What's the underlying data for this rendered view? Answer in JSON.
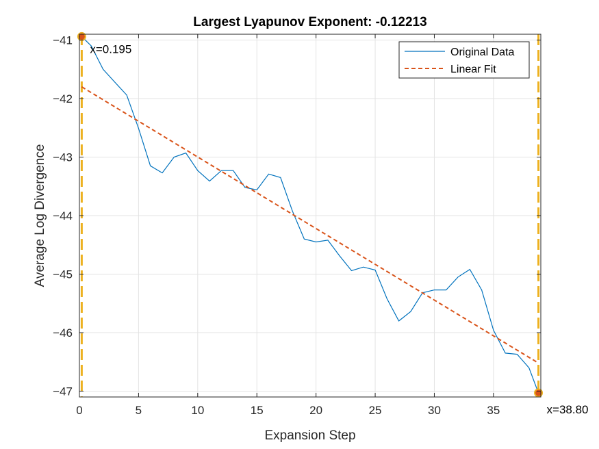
{
  "chart_data": {
    "type": "line",
    "title": "Largest Lyapunov Exponent: -0.12213",
    "xlabel": "Expansion Step",
    "ylabel": "Average Log Divergence",
    "xlim": [
      0,
      39
    ],
    "ylim": [
      -47.1,
      -40.9
    ],
    "xticks": [
      0,
      5,
      10,
      15,
      20,
      25,
      30,
      35
    ],
    "yticks": [
      -41,
      -42,
      -43,
      -44,
      -45,
      -46,
      -47
    ],
    "grid": true,
    "legend_position": "top-right",
    "series": [
      {
        "name": "Original Data",
        "color": "#0072BD",
        "style": "solid",
        "x": [
          0.195,
          1,
          2,
          3,
          4,
          5,
          6,
          7,
          8,
          9,
          10,
          11,
          12,
          13,
          14,
          15,
          16,
          17,
          18,
          19,
          20,
          21,
          22,
          23,
          24,
          25,
          26,
          27,
          28,
          29,
          30,
          31,
          32,
          33,
          34,
          35,
          36,
          37,
          38,
          38.8
        ],
        "y": [
          -40.94,
          -41.1,
          -41.5,
          -41.72,
          -41.94,
          -42.51,
          -43.15,
          -43.27,
          -43.0,
          -42.93,
          -43.23,
          -43.41,
          -43.23,
          -43.23,
          -43.52,
          -43.56,
          -43.29,
          -43.35,
          -43.92,
          -44.4,
          -44.45,
          -44.42,
          -44.69,
          -44.94,
          -44.88,
          -44.93,
          -45.42,
          -45.8,
          -45.64,
          -45.32,
          -45.27,
          -45.27,
          -45.05,
          -44.92,
          -45.27,
          -45.96,
          -46.35,
          -46.37,
          -46.6,
          -47.03
        ]
      },
      {
        "name": "Linear Fit",
        "color": "#D95319",
        "style": "dashed",
        "x": [
          0.195,
          38.8
        ],
        "y": [
          -41.8,
          -46.52
        ]
      }
    ],
    "vlines": [
      {
        "x": 0.195,
        "color": "#EDB120"
      },
      {
        "x": 38.8,
        "color": "#EDB120"
      }
    ],
    "markers": [
      {
        "x": 0.195,
        "y": -40.94,
        "label": "x=0.195",
        "color": "#D95319"
      },
      {
        "x": 38.8,
        "y": -47.03,
        "label": "x=38.80",
        "color": "#D95319"
      }
    ]
  }
}
